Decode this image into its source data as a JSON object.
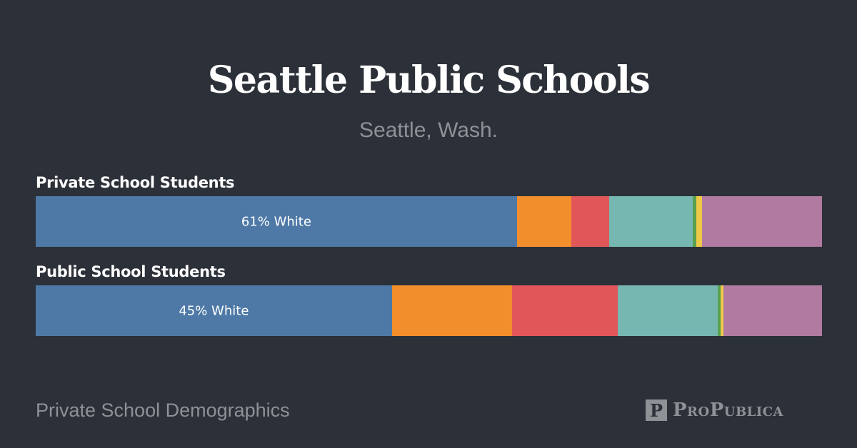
{
  "header": {
    "title": "Seattle Public Schools",
    "subtitle": "Seattle, Wash."
  },
  "footer": {
    "text": "Private School Demographics",
    "logo_text": "ProPublica"
  },
  "chart_data": {
    "type": "bar",
    "orientation": "horizontal-stacked-100",
    "categories": [
      "Private School Students",
      "Public School Students"
    ],
    "colors": [
      "#4e79a7",
      "#f28e2b",
      "#e15759",
      "#76b7b2",
      "#59a14f",
      "#edc948",
      "#b07aa1"
    ],
    "series": [
      {
        "values": [
          61.2,
          45.3
        ]
      },
      {
        "values": [
          6.9,
          15.3
        ]
      },
      {
        "values": [
          4.8,
          13.4
        ]
      },
      {
        "values": [
          10.7,
          12.7
        ]
      },
      {
        "values": [
          0.4,
          0.4
        ]
      },
      {
        "values": [
          0.7,
          0.4
        ]
      },
      {
        "values": [
          15.3,
          12.5
        ]
      }
    ],
    "data_labels": [
      "61% White",
      "45% White"
    ],
    "xlim": [
      0,
      100
    ],
    "grid": false,
    "legend": "none"
  }
}
